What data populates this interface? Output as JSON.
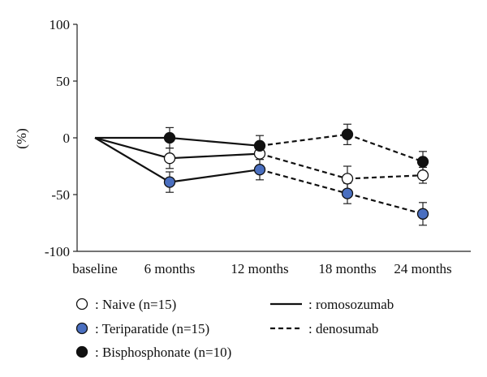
{
  "chart_data": {
    "type": "line",
    "title": "",
    "xlabel": "",
    "ylabel": "(%)",
    "categories": [
      "baseline",
      "6 months",
      "12 months",
      "18 months",
      "24 months"
    ],
    "yticks": [
      100,
      50,
      0,
      -50,
      -100
    ],
    "ylim": [
      -100,
      100
    ],
    "grid": false,
    "series": [
      {
        "name": ": Naive (n=15)",
        "marker": "open-circle",
        "marker_color": "#ffffff",
        "points": [
          {
            "x": "baseline",
            "y": 0
          },
          {
            "x": "6 months",
            "y": -18,
            "err": 9
          },
          {
            "x": "12 months",
            "y": -14,
            "err": 5
          },
          {
            "x": "18 months",
            "y": -36,
            "err": 11
          },
          {
            "x": "24 months",
            "y": -33,
            "err": 7
          }
        ]
      },
      {
        "name": ": Teriparatide (n=15)",
        "marker": "filled-circle",
        "marker_color": "#4a6fc0",
        "points": [
          {
            "x": "baseline",
            "y": 0
          },
          {
            "x": "6 months",
            "y": -39,
            "err": 9
          },
          {
            "x": "12 months",
            "y": -28,
            "err": 9
          },
          {
            "x": "18 months",
            "y": -49,
            "err": 9
          },
          {
            "x": "24 months",
            "y": -67,
            "err": 10
          }
        ]
      },
      {
        "name": ": Bisphosphonate (n=10)",
        "marker": "filled-circle",
        "marker_color": "#111111",
        "points": [
          {
            "x": "baseline",
            "y": 0
          },
          {
            "x": "6 months",
            "y": 0,
            "err": 9
          },
          {
            "x": "12 months",
            "y": -7,
            "err": 9
          },
          {
            "x": "18 months",
            "y": 3,
            "err": 9
          },
          {
            "x": "24 months",
            "y": -21,
            "err": 9
          }
        ]
      }
    ],
    "line_segments": [
      {
        "style": "solid",
        "from": "baseline",
        "to": "6 months",
        "series": 0
      },
      {
        "style": "solid",
        "from": "6 months",
        "to": "12 months",
        "series": 0
      },
      {
        "style": "dashed",
        "from": "12 months",
        "to": "18 months",
        "series": 0
      },
      {
        "style": "dashed",
        "from": "18 months",
        "to": "24 months",
        "series": 0
      },
      {
        "style": "solid",
        "from": "baseline",
        "to": "6 months",
        "series": 1
      },
      {
        "style": "solid",
        "from": "6 months",
        "to": "12 months",
        "series": 1
      },
      {
        "style": "dashed",
        "from": "12 months",
        "to": "18 months",
        "series": 1
      },
      {
        "style": "dashed",
        "from": "18 months",
        "to": "24 months",
        "series": 1
      },
      {
        "style": "solid",
        "from": "baseline",
        "to": "6 months",
        "series": 2
      },
      {
        "style": "solid",
        "from": "6 months",
        "to": "12 months",
        "series": 2
      },
      {
        "style": "dashed",
        "from": "12 months",
        "to": "18 months",
        "series": 2
      },
      {
        "style": "dashed",
        "from": "18 months",
        "to": "24 months",
        "series": 2
      }
    ],
    "line_legend": [
      {
        "style": "solid",
        "label": ": romosozumab"
      },
      {
        "style": "dashed",
        "label": ": denosumab"
      }
    ]
  }
}
